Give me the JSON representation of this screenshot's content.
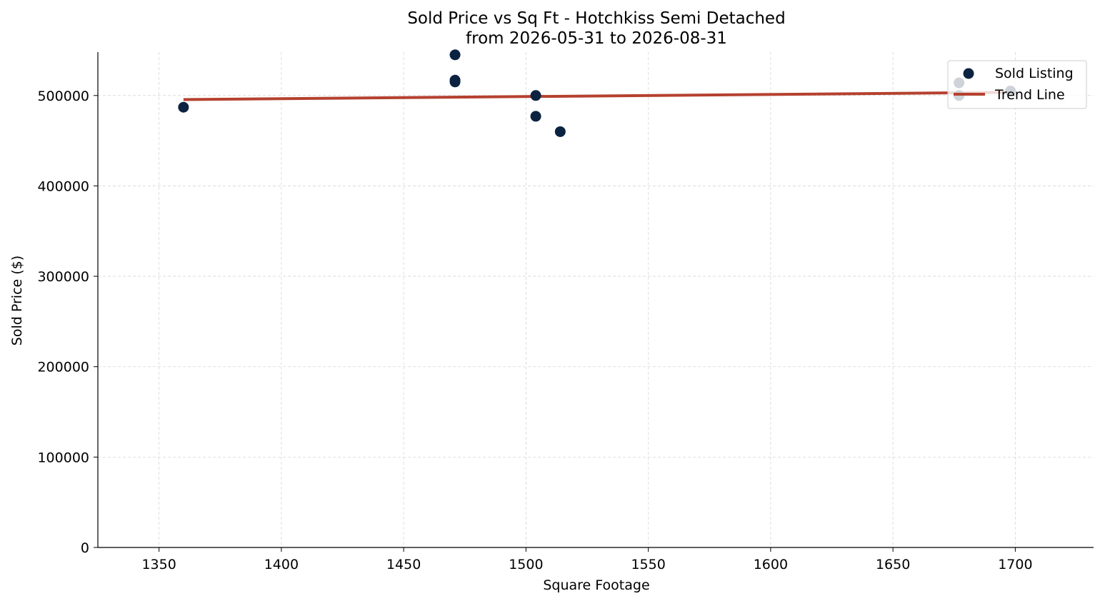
{
  "chart_data": {
    "type": "scatter",
    "title": "Sold Price vs Sq Ft - Hotchkiss Semi Detached",
    "subtitle": "from 2026-05-31 to 2026-08-31",
    "xlabel": "Square Footage",
    "ylabel": "Sold Price ($)",
    "xlim": [
      1325,
      1732
    ],
    "ylim": [
      0,
      548000
    ],
    "xticks": [
      1350,
      1400,
      1450,
      1500,
      1550,
      1600,
      1650,
      1700
    ],
    "yticks": [
      0,
      100000,
      200000,
      300000,
      400000,
      500000
    ],
    "grid": true,
    "legend_position": "top-right",
    "series": [
      {
        "name": "Sold Listing",
        "kind": "scatter",
        "color": "#0b2341",
        "points": [
          {
            "x": 1360,
            "y": 487000
          },
          {
            "x": 1471,
            "y": 545000
          },
          {
            "x": 1471,
            "y": 517000
          },
          {
            "x": 1471,
            "y": 515000
          },
          {
            "x": 1504,
            "y": 500000
          },
          {
            "x": 1504,
            "y": 477000
          },
          {
            "x": 1514,
            "y": 460000
          },
          {
            "x": 1677,
            "y": 514000
          },
          {
            "x": 1677,
            "y": 500000
          },
          {
            "x": 1698,
            "y": 505000
          }
        ]
      },
      {
        "name": "Trend Line",
        "kind": "line",
        "color": "#b5412f",
        "points": [
          {
            "x": 1360,
            "y": 495500
          },
          {
            "x": 1698,
            "y": 503500
          }
        ]
      }
    ]
  }
}
